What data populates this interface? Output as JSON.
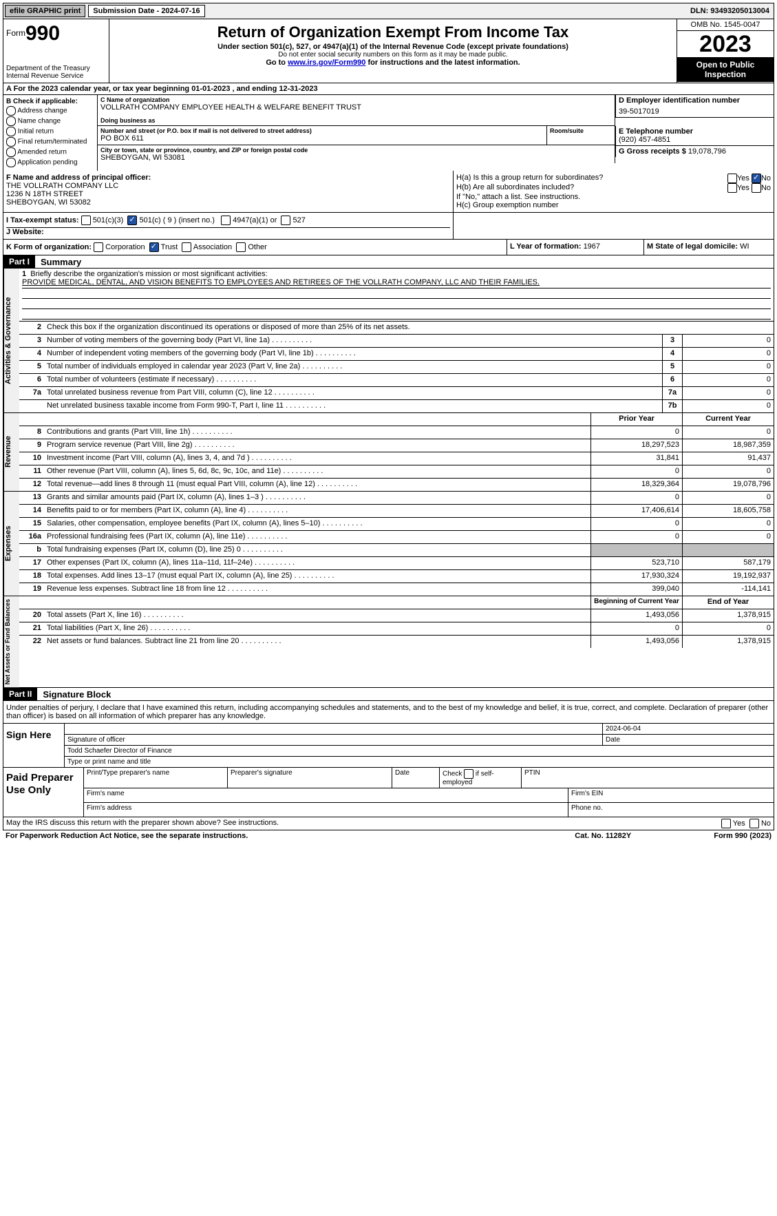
{
  "topbar": {
    "efile": "efile GRAPHIC print",
    "submission_label": "Submission Date - 2024-07-16",
    "dln": "DLN: 93493205013004"
  },
  "header": {
    "form_prefix": "Form",
    "form_number": "990",
    "dept": "Department of the Treasury Internal Revenue Service",
    "title": "Return of Organization Exempt From Income Tax",
    "sub": "Under section 501(c), 527, or 4947(a)(1) of the Internal Revenue Code (except private foundations)",
    "warn": "Do not enter social security numbers on this form as it may be made public.",
    "goto_pre": "Go to ",
    "goto_link": "www.irs.gov/Form990",
    "goto_post": " for instructions and the latest information.",
    "omb": "OMB No. 1545-0047",
    "year": "2023",
    "opti": "Open to Public Inspection"
  },
  "section_a": "A For the 2023 calendar year, or tax year beginning 01-01-2023   , and ending 12-31-2023",
  "section_b": {
    "label": "B Check if applicable:",
    "items": [
      "Address change",
      "Name change",
      "Initial return",
      "Final return/terminated",
      "Amended return",
      "Application pending"
    ]
  },
  "section_c": {
    "name_lbl": "C Name of organization",
    "name": "VOLLRATH COMPANY EMPLOYEE HEALTH & WELFARE BENEFIT TRUST",
    "dba_lbl": "Doing business as",
    "dba": "",
    "addr_lbl": "Number and street (or P.O. box if mail is not delivered to street address)",
    "addr": "PO BOX 611",
    "room_lbl": "Room/suite",
    "city_lbl": "City or town, state or province, country, and ZIP or foreign postal code",
    "city": "SHEBOYGAN, WI  53081"
  },
  "section_d": {
    "lbl": "D Employer identification number",
    "val": "39-5017019"
  },
  "section_e": {
    "lbl": "E Telephone number",
    "val": "(920) 457-4851"
  },
  "section_g": {
    "lbl": "G Gross receipts $ ",
    "val": "19,078,796"
  },
  "section_f": {
    "lbl": "F  Name and address of principal officer:",
    "line1": "THE VOLLRATH COMPANY LLC",
    "line2": "1236 N 18TH STREET",
    "line3": "SHEBOYGAN, WI  53082"
  },
  "section_h": {
    "ha": "H(a)  Is this a group return for subordinates?",
    "hb": "H(b)  Are all subordinates included?",
    "hb_note": "If \"No,\" attach a list. See instructions.",
    "hc": "H(c)  Group exemption number "
  },
  "section_i": {
    "lbl": "I   Tax-exempt status:",
    "c3": "501(c)(3)",
    "c": "501(c) ( 9 ) (insert no.)",
    "a4947": "4947(a)(1) or",
    "s527": "527"
  },
  "section_j": {
    "lbl": "J   Website: "
  },
  "section_k": {
    "lbl": "K Form of organization:",
    "opts": [
      "Corporation",
      "Trust",
      "Association",
      "Other"
    ]
  },
  "section_l": {
    "lbl": "L Year of formation: ",
    "val": "1967"
  },
  "section_m": {
    "lbl": "M State of legal domicile: ",
    "val": "WI"
  },
  "part1": {
    "header": "Part I",
    "title": "Summary",
    "mission_lbl": "Briefly describe the organization's mission or most significant activities:",
    "mission": "PROVIDE MEDICAL, DENTAL, AND VISION BENEFITS TO EMPLOYEES AND RETIREES OF THE VOLLRATH COMPANY, LLC AND THEIR FAMILIES.",
    "line2": "Check this box      if the organization discontinued its operations or disposed of more than 25% of its net assets."
  },
  "gov_lines": [
    {
      "n": "3",
      "d": "Number of voting members of the governing body (Part VI, line 1a)",
      "box": "3",
      "v": "0"
    },
    {
      "n": "4",
      "d": "Number of independent voting members of the governing body (Part VI, line 1b)",
      "box": "4",
      "v": "0"
    },
    {
      "n": "5",
      "d": "Total number of individuals employed in calendar year 2023 (Part V, line 2a)",
      "box": "5",
      "v": "0"
    },
    {
      "n": "6",
      "d": "Total number of volunteers (estimate if necessary)",
      "box": "6",
      "v": "0"
    },
    {
      "n": "7a",
      "d": "Total unrelated business revenue from Part VIII, column (C), line 12",
      "box": "7a",
      "v": "0"
    },
    {
      "n": "",
      "d": "Net unrelated business taxable income from Form 990-T, Part I, line 11",
      "box": "7b",
      "v": "0"
    }
  ],
  "rev_header": {
    "prior": "Prior Year",
    "current": "Current Year"
  },
  "rev_lines": [
    {
      "n": "8",
      "d": "Contributions and grants (Part VIII, line 1h)",
      "p": "0",
      "c": "0"
    },
    {
      "n": "9",
      "d": "Program service revenue (Part VIII, line 2g)",
      "p": "18,297,523",
      "c": "18,987,359"
    },
    {
      "n": "10",
      "d": "Investment income (Part VIII, column (A), lines 3, 4, and 7d )",
      "p": "31,841",
      "c": "91,437"
    },
    {
      "n": "11",
      "d": "Other revenue (Part VIII, column (A), lines 5, 6d, 8c, 9c, 10c, and 11e)",
      "p": "0",
      "c": "0"
    },
    {
      "n": "12",
      "d": "Total revenue—add lines 8 through 11 (must equal Part VIII, column (A), line 12)",
      "p": "18,329,364",
      "c": "19,078,796"
    }
  ],
  "exp_lines": [
    {
      "n": "13",
      "d": "Grants and similar amounts paid (Part IX, column (A), lines 1–3 )",
      "p": "0",
      "c": "0"
    },
    {
      "n": "14",
      "d": "Benefits paid to or for members (Part IX, column (A), line 4)",
      "p": "17,406,614",
      "c": "18,605,758"
    },
    {
      "n": "15",
      "d": "Salaries, other compensation, employee benefits (Part IX, column (A), lines 5–10)",
      "p": "0",
      "c": "0"
    },
    {
      "n": "16a",
      "d": "Professional fundraising fees (Part IX, column (A), line 11e)",
      "p": "0",
      "c": "0"
    },
    {
      "n": "b",
      "d": "Total fundraising expenses (Part IX, column (D), line 25) 0",
      "p": "shade",
      "c": "shade"
    },
    {
      "n": "17",
      "d": "Other expenses (Part IX, column (A), lines 11a–11d, 11f–24e)",
      "p": "523,710",
      "c": "587,179"
    },
    {
      "n": "18",
      "d": "Total expenses. Add lines 13–17 (must equal Part IX, column (A), line 25)",
      "p": "17,930,324",
      "c": "19,192,937"
    },
    {
      "n": "19",
      "d": "Revenue less expenses. Subtract line 18 from line 12",
      "p": "399,040",
      "c": "-114,141"
    }
  ],
  "na_header": {
    "prior": "Beginning of Current Year",
    "current": "End of Year"
  },
  "na_lines": [
    {
      "n": "20",
      "d": "Total assets (Part X, line 16)",
      "p": "1,493,056",
      "c": "1,378,915"
    },
    {
      "n": "21",
      "d": "Total liabilities (Part X, line 26)",
      "p": "0",
      "c": "0"
    },
    {
      "n": "22",
      "d": "Net assets or fund balances. Subtract line 21 from line 20",
      "p": "1,493,056",
      "c": "1,378,915"
    }
  ],
  "part2": {
    "header": "Part II",
    "title": "Signature Block",
    "text": "Under penalties of perjury, I declare that I have examined this return, including accompanying schedules and statements, and to the best of my knowledge and belief, it is true, correct, and complete. Declaration of preparer (other than officer) is based on all information of which preparer has any knowledge."
  },
  "sign": {
    "left": "Sign Here",
    "date": "2024-06-04",
    "sig_lbl": "Signature of officer",
    "name": "Todd Schaefer  Director of Finance",
    "name_lbl": "Type or print name and title",
    "date_lbl": "Date"
  },
  "prep": {
    "left": "Paid Preparer Use Only",
    "h1": "Print/Type preparer's name",
    "h2": "Preparer's signature",
    "h3": "Date",
    "h4_pre": "Check",
    "h4_post": "if self-employed",
    "h5": "PTIN",
    "firm_name": "Firm's name  ",
    "firm_ein": "Firm's EIN  ",
    "firm_addr": "Firm's address  ",
    "phone": "Phone no."
  },
  "footer": {
    "q": "May the IRS discuss this return with the preparer shown above? See instructions.",
    "yes": "Yes",
    "no": "No",
    "pra": "For Paperwork Reduction Act Notice, see the separate instructions.",
    "cat": "Cat. No. 11282Y",
    "form": "Form 990 (2023)"
  },
  "style": {
    "accent": "#0000cc",
    "checkbox_fill": "#2050a0",
    "shade": "#c0c0c0"
  }
}
